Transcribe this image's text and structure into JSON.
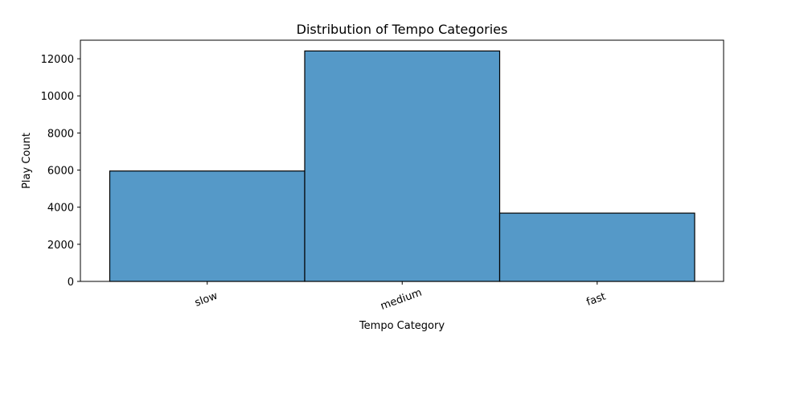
{
  "chart_data": {
    "type": "bar",
    "title": "Distribution of Tempo Categories",
    "xlabel": "Tempo Category",
    "ylabel": "Play Count",
    "categories": [
      "slow",
      "medium",
      "fast"
    ],
    "values": [
      5950,
      12420,
      3680
    ],
    "ylim": [
      0,
      13000
    ],
    "yticks": [
      0,
      2000,
      4000,
      6000,
      8000,
      10000,
      12000
    ],
    "ytick_labels": [
      "0",
      "2000",
      "4000",
      "6000",
      "8000",
      "10000",
      "12000"
    ],
    "bar_color": "#5599c8",
    "edge_color": "#000000",
    "grid": false,
    "legend": "none"
  }
}
